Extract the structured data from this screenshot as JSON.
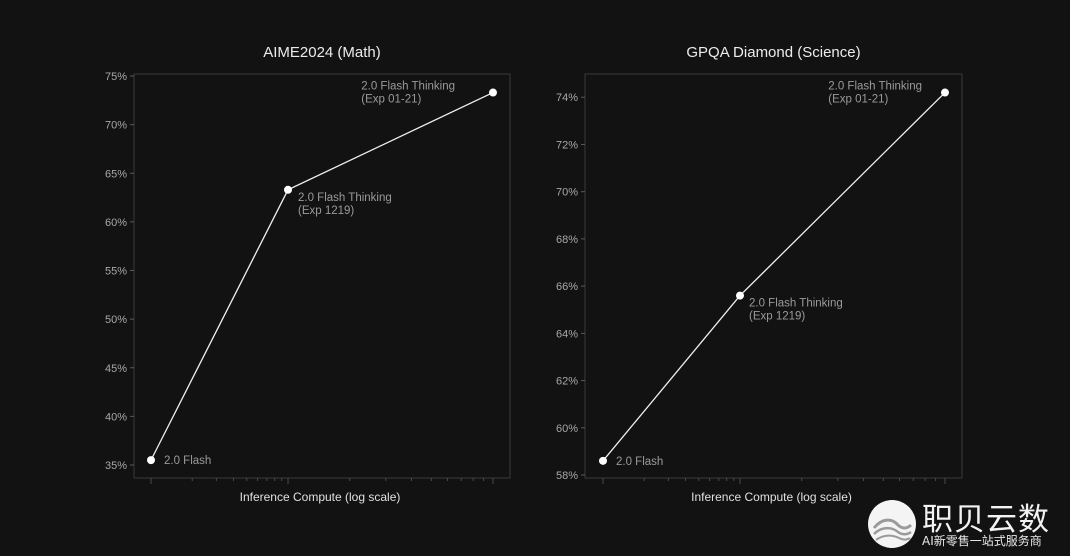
{
  "chart_data": [
    {
      "type": "line",
      "title": "AIME2024 (Math)",
      "xlabel": "Inference Compute (log scale)",
      "ylabel": "",
      "x_scale": "log",
      "ylim": [
        35,
        75
      ],
      "y_ticks": [
        35,
        40,
        45,
        50,
        55,
        60,
        65,
        70,
        75
      ],
      "y_tick_labels": [
        "35%",
        "40%",
        "45%",
        "50%",
        "55%",
        "60%",
        "65%",
        "70%",
        "75%"
      ],
      "grid": false,
      "series": [
        {
          "points": [
            {
              "label": [
                "2.0 Flash"
              ],
              "y": 35.5
            },
            {
              "label": [
                "2.0 Flash Thinking",
                "(Exp 1219)"
              ],
              "y": 63.3
            },
            {
              "label": [
                "2.0 Flash Thinking",
                "(Exp 01-21)"
              ],
              "y": 73.3
            }
          ]
        }
      ]
    },
    {
      "type": "line",
      "title": "GPQA Diamond (Science)",
      "xlabel": "Inference Compute (log scale)",
      "ylabel": "",
      "x_scale": "log",
      "ylim": [
        58,
        74.9
      ],
      "y_ticks": [
        58,
        60,
        62,
        64,
        66,
        68,
        70,
        72,
        74
      ],
      "y_tick_labels": [
        "58%",
        "60%",
        "62%",
        "64%",
        "66%",
        "68%",
        "70%",
        "72%",
        "74%"
      ],
      "grid": false,
      "series": [
        {
          "points": [
            {
              "label": [
                "2.0 Flash"
              ],
              "y": 58.6
            },
            {
              "label": [
                "2.0 Flash Thinking",
                "(Exp 1219)"
              ],
              "y": 65.6
            },
            {
              "label": [
                "2.0 Flash Thinking",
                "(Exp 01-21)"
              ],
              "y": 74.2
            }
          ]
        }
      ]
    }
  ],
  "watermark": {
    "name": "职贝云数",
    "tagline": "AI新零售一站式服务商",
    "logo_icon": "wave-circle-logo"
  }
}
